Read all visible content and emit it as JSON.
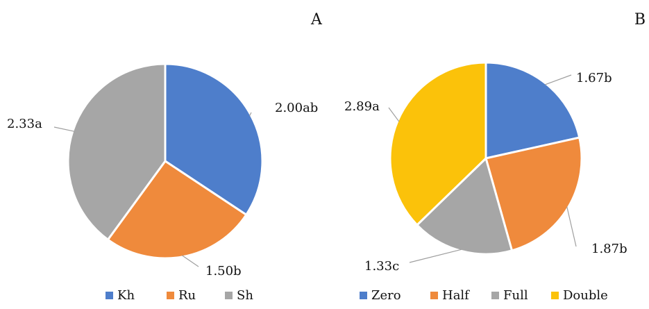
{
  "chart_data": [
    {
      "type": "pie",
      "title": "A",
      "categories": [
        "Kh",
        "Ru",
        "Sh"
      ],
      "values": [
        2.0,
        1.5,
        2.33
      ],
      "labels": [
        "2.00ab",
        "1.50b",
        "2.33a"
      ],
      "colors": [
        "#4e7ecb",
        "#ef8a3c",
        "#a6a6a6"
      ],
      "legend": "bottom"
    },
    {
      "type": "pie",
      "title": "B",
      "categories": [
        "Zero",
        "Half",
        "Full",
        "Double"
      ],
      "values": [
        1.67,
        1.87,
        1.33,
        2.89
      ],
      "labels": [
        "1.67b",
        "1.87b",
        "1.33c",
        "2.89a"
      ],
      "colors": [
        "#4e7ecb",
        "#ef8a3c",
        "#a6a6a6",
        "#fbc20a"
      ],
      "legend": "bottom"
    }
  ]
}
